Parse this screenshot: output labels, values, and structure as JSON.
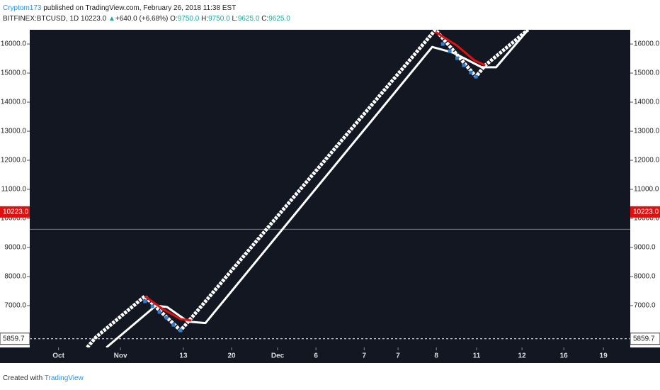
{
  "header": {
    "author": "Cryptom173",
    "published": "published on TradingView.com, February 26, 2018 11:38 EST",
    "symbol": "BITFINEX:BTCUSD, 1D",
    "last": "10223.0",
    "change": "+640.0 (+6.68%)",
    "ohlc": [
      {
        "label": "O:",
        "value": "9750.0"
      },
      {
        "label": "H:",
        "value": "9750.0"
      },
      {
        "label": "L:",
        "value": "9625.0"
      },
      {
        "label": "C:",
        "value": "9625.0"
      }
    ]
  },
  "footer": {
    "text": "Created with",
    "brand": "TradingView"
  },
  "chart_data": {
    "type": "line",
    "xlim": [
      0,
      188
    ],
    "ylim": [
      5560,
      16490
    ],
    "xticks": [
      {
        "value": 9,
        "label": "Oct"
      },
      {
        "value": 28.4,
        "label": "Nov"
      },
      {
        "value": 48.1,
        "label": "13"
      },
      {
        "value": 63.2,
        "label": "20"
      },
      {
        "value": 77.6,
        "label": "Dec"
      },
      {
        "value": 89.6,
        "label": "6"
      },
      {
        "value": 104.7,
        "label": "7"
      },
      {
        "value": 115.3,
        "label": "7"
      },
      {
        "value": 127.3,
        "label": "8"
      },
      {
        "value": 139.9,
        "label": "11"
      },
      {
        "value": 154.1,
        "label": "12"
      },
      {
        "value": 167.2,
        "label": "16"
      },
      {
        "value": 179.6,
        "label": "19"
      }
    ],
    "yticks": [
      {
        "value": 7000,
        "label": "7000.0"
      },
      {
        "value": 8000,
        "label": "8000.0"
      },
      {
        "value": 9000,
        "label": "9000.0"
      },
      {
        "value": 10000,
        "label": "10000.0"
      },
      {
        "value": 11000,
        "label": "11000.0"
      },
      {
        "value": 12000,
        "label": "12000.0"
      },
      {
        "value": 13000,
        "label": "13000.0"
      },
      {
        "value": 14000,
        "label": "14000.0"
      },
      {
        "value": 15000,
        "label": "15000.0"
      },
      {
        "value": 16000,
        "label": "16000.0"
      }
    ],
    "grid": false,
    "series": [
      {
        "color": "#ffffff",
        "style": "bricks",
        "x": [
          18,
          20.6,
          36,
          47.2,
          48.8,
          127,
          139.7,
          142.6,
          156
        ],
        "values": [
          5560,
          5900,
          7320,
          6146,
          6341,
          16490,
          14878,
          15268,
          16490
        ]
      },
      {
        "color": "#ffffff",
        "style": "line",
        "x": [
          24,
          39.5,
          43,
          49.5,
          55,
          126,
          132.6,
          141.5,
          146,
          156
        ],
        "values": [
          5560,
          7000,
          6950,
          6450,
          6400,
          15900,
          15700,
          15200,
          15200,
          16490
        ]
      },
      {
        "color": "#e01010",
        "style": "line",
        "x": [
          36.1,
          41.7,
          47.2,
          50.6
        ],
        "values": [
          7317,
          6878,
          6537,
          6488
        ]
      },
      {
        "color": "#e01010",
        "style": "line",
        "x": [
          127,
          133.7,
          139.2,
          142.6
        ],
        "values": [
          16415,
          15951,
          15439,
          15268
        ]
      },
      {
        "color": "#2e7fd6",
        "style": "markers",
        "x": [
          36.1,
          38.4,
          40.6,
          42.8,
          45,
          47.2,
          129.3,
          131.5,
          133.8,
          135.9,
          138.1,
          139.7
        ],
        "values": [
          7146,
          6976,
          6780,
          6585,
          6341,
          6146,
          16000,
          15756,
          15512,
          15268,
          15024,
          14878
        ]
      }
    ],
    "hlines": [
      {
        "value": 9625,
        "color": "#787b86",
        "dash": false
      }
    ],
    "price_labels": [
      {
        "value": 10223,
        "label": "10223.0",
        "color": "#e01010",
        "dash": false
      },
      {
        "value": 5859.7,
        "label": "5859.7",
        "color": "#ffffff",
        "dash": true
      }
    ]
  }
}
